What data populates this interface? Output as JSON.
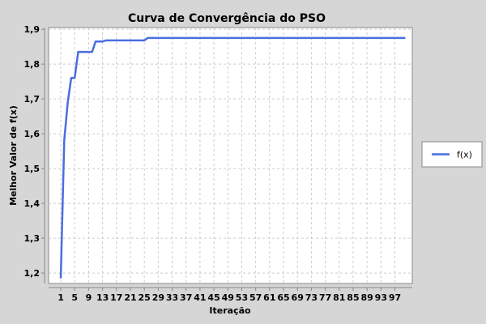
{
  "chart_data": {
    "type": "line",
    "title": "Curva de Convergência do PSO",
    "xlabel": "Iteração",
    "ylabel": "Melhor Valor de f(x)",
    "xlim": [
      -2.5,
      102
    ],
    "ylim": [
      1.17,
      1.905
    ],
    "grid": true,
    "legend_placement": "right",
    "series_color": "#4a6ee0",
    "x_ticks": [
      1,
      5,
      9,
      13,
      17,
      21,
      25,
      29,
      33,
      37,
      41,
      45,
      49,
      53,
      57,
      61,
      65,
      69,
      73,
      77,
      81,
      85,
      89,
      93,
      97
    ],
    "y_ticks": [
      1.2,
      1.3,
      1.4,
      1.5,
      1.6,
      1.7,
      1.8,
      1.9
    ],
    "y_tick_labels": [
      "1,2",
      "1,3",
      "1,4",
      "1,5",
      "1,6",
      "1,7",
      "1,8",
      "1,9"
    ],
    "series": [
      {
        "name": "f(x)",
        "x": [
          1,
          2,
          3,
          4,
          5,
          6,
          7,
          8,
          9,
          10,
          11,
          12,
          13,
          14,
          15,
          25,
          26,
          100
        ],
        "values": [
          1.185,
          1.58,
          1.69,
          1.76,
          1.76,
          1.835,
          1.835,
          1.835,
          1.835,
          1.835,
          1.865,
          1.865,
          1.865,
          1.868,
          1.868,
          1.868,
          1.875,
          1.875
        ]
      }
    ]
  }
}
